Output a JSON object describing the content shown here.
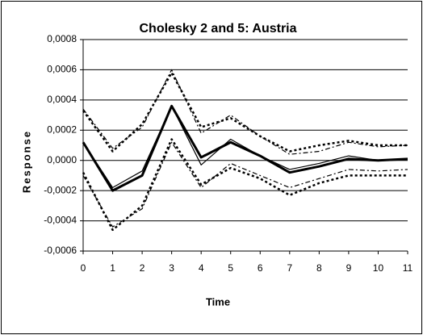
{
  "chart_data": {
    "type": "line",
    "title": "Cholesky 2 and 5: Austria",
    "x_label": "Time",
    "y_label": "Response",
    "x": [
      0,
      1,
      2,
      3,
      4,
      5,
      6,
      7,
      8,
      9,
      10,
      11
    ],
    "xlim": [
      0,
      11
    ],
    "xticks": [
      0,
      1,
      2,
      3,
      4,
      5,
      6,
      7,
      8,
      9,
      10,
      11
    ],
    "ylim": [
      -0.0006,
      0.0008
    ],
    "yticks": [
      {
        "value": -0.0006,
        "label": "-0,0006"
      },
      {
        "value": -0.0004,
        "label": "-0,0004"
      },
      {
        "value": -0.0002,
        "label": "-0,0002"
      },
      {
        "value": 0,
        "label": "0,0000"
      },
      {
        "value": 0.0002,
        "label": "0,0002"
      },
      {
        "value": 0.0004,
        "label": "0,0004"
      },
      {
        "value": 0.0006,
        "label": "0,0006"
      },
      {
        "value": 0.0008,
        "label": "0,0008"
      }
    ],
    "grid": true,
    "series": [
      {
        "color": "#000000",
        "values": [
          0.00012,
          -0.0002,
          -0.0001,
          0.00036,
          2e-05,
          0.00012,
          3e-05,
          -8e-05,
          -4e-05,
          1e-05,
          0.0,
          1e-05
        ]
      },
      {
        "color": "#000000",
        "values": [
          0.00012,
          -0.00018,
          -7e-05,
          0.00036,
          -3e-05,
          0.00014,
          3e-05,
          -6e-05,
          -2e-05,
          3e-05,
          0.0,
          1e-05
        ]
      },
      {
        "color": "#000000",
        "values": [
          0.00034,
          8e-05,
          0.00022,
          0.0006,
          0.00018,
          0.0003,
          0.00016,
          4e-05,
          6e-05,
          0.00012,
          9e-05,
          0.0001
        ]
      },
      {
        "color": "#000000",
        "values": [
          -0.0001,
          -0.00044,
          -0.00032,
          0.00012,
          -0.00018,
          -2e-05,
          -0.0001,
          -0.00018,
          -0.00012,
          -6e-05,
          -7e-05,
          -6e-05
        ]
      },
      {
        "color": "#000000",
        "values": [
          0.00033,
          6e-05,
          0.00024,
          0.00058,
          0.00022,
          0.00028,
          0.00016,
          6e-05,
          0.0001,
          0.00013,
          0.0001,
          0.0001
        ]
      },
      {
        "color": "#000000",
        "values": [
          -8e-05,
          -0.00046,
          -0.0003,
          0.00014,
          -0.00016,
          -5e-05,
          -0.00012,
          -0.00023,
          -0.00015,
          -0.0001,
          -0.0001,
          -0.0001
        ]
      }
    ]
  }
}
